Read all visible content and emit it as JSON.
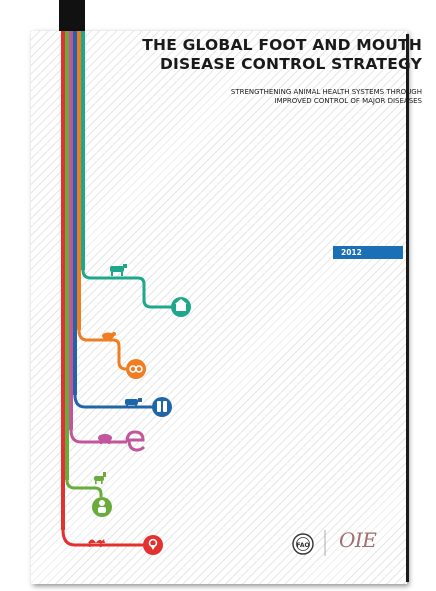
{
  "cover": {
    "title_line1": "THE GLOBAL FOOT AND MOUTH",
    "title_line2": "DISEASE CONTROL STRATEGY",
    "subtitle_line1": "STRENGTHENING ANIMAL HEALTH SYSTEMS THROUGH",
    "subtitle_line2": "IMPROVED CONTROL OF MAJOR DISEASES",
    "year": "2012"
  },
  "logos": {
    "fao": "fao-logo",
    "oie": "OIE"
  },
  "colors": {
    "red": "#e3312f",
    "green": "#6aac3c",
    "pink": "#c2559c",
    "blue": "#1f66a9",
    "orange": "#ef7d22",
    "teal": "#1ea78a",
    "year_bg": "#1a6fb5"
  },
  "branches": [
    {
      "color": "teal",
      "animal": "cattle-icon",
      "end_icon": "barn-icon"
    },
    {
      "color": "orange",
      "animal": "sheep-icon",
      "end_icon": "link-icon"
    },
    {
      "color": "blue",
      "animal": "buffalo-icon",
      "end_icon": "vaccine-icon"
    },
    {
      "color": "pink",
      "animal": "pig-icon",
      "end_icon": "ear-tag-icon"
    },
    {
      "color": "green",
      "animal": "goat-icon",
      "end_icon": "person-icon"
    },
    {
      "color": "red",
      "animal": "camel-icon",
      "end_icon": "location-pin-icon"
    }
  ]
}
